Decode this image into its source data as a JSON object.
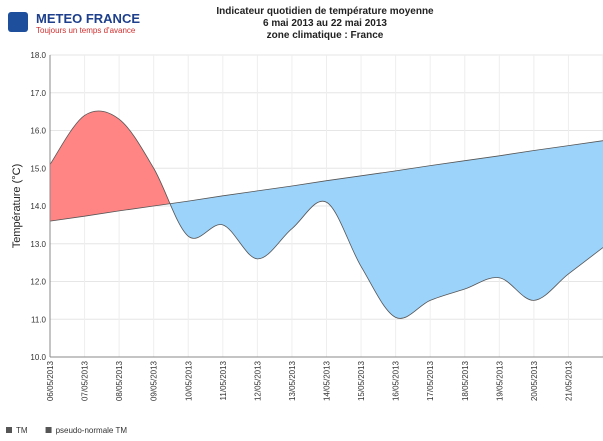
{
  "header": {
    "logo": "METEO FRANCE",
    "tagline": "Toujours un temps d'avance"
  },
  "chart_data": {
    "type": "area-difference",
    "title": [
      "Indicateur quotidien de température moyenne",
      "6 mai 2013 au 22 mai 2013",
      "zone climatique : France"
    ],
    "y_label": "Température (°C)",
    "categories": [
      "06/05/2013",
      "07/05/2013",
      "08/05/2013",
      "09/05/2013",
      "10/05/2013",
      "11/05/2013",
      "12/05/2013",
      "13/05/2013",
      "14/05/2013",
      "15/05/2013",
      "16/05/2013",
      "17/05/2013",
      "18/05/2013",
      "19/05/2013",
      "20/05/2013",
      "21/05/2013",
      null
    ],
    "series": [
      {
        "name": "TM",
        "color": "#555555",
        "values": [
          15.1,
          16.4,
          16.3,
          15.0,
          13.2,
          13.5,
          12.6,
          13.4,
          14.1,
          12.4,
          11.05,
          11.5,
          11.8,
          12.1,
          11.5,
          12.2,
          12.9
        ]
      },
      {
        "name": "pseudo-normale TM",
        "color": "#555555",
        "values": [
          13.6,
          13.73,
          13.87,
          14.0,
          14.13,
          14.27,
          14.4,
          14.53,
          14.67,
          14.8,
          14.93,
          15.07,
          15.2,
          15.33,
          15.47,
          15.6,
          15.73
        ]
      }
    ],
    "above_color": "#ff8585",
    "below_color": "#9cd3fb",
    "ylim": [
      10,
      18
    ],
    "yticks": [
      {
        "value": 10,
        "label": "10.0"
      },
      {
        "value": 11,
        "label": "11.0"
      },
      {
        "value": 12,
        "label": "12.0"
      },
      {
        "value": 13,
        "label": "13.0"
      },
      {
        "value": 14,
        "label": "14.0"
      },
      {
        "value": 15,
        "label": "15.0"
      },
      {
        "value": 16,
        "label": "16.0"
      },
      {
        "value": 17,
        "label": "17.0"
      },
      {
        "value": 18,
        "label": "18.0"
      }
    ],
    "grid": true
  }
}
